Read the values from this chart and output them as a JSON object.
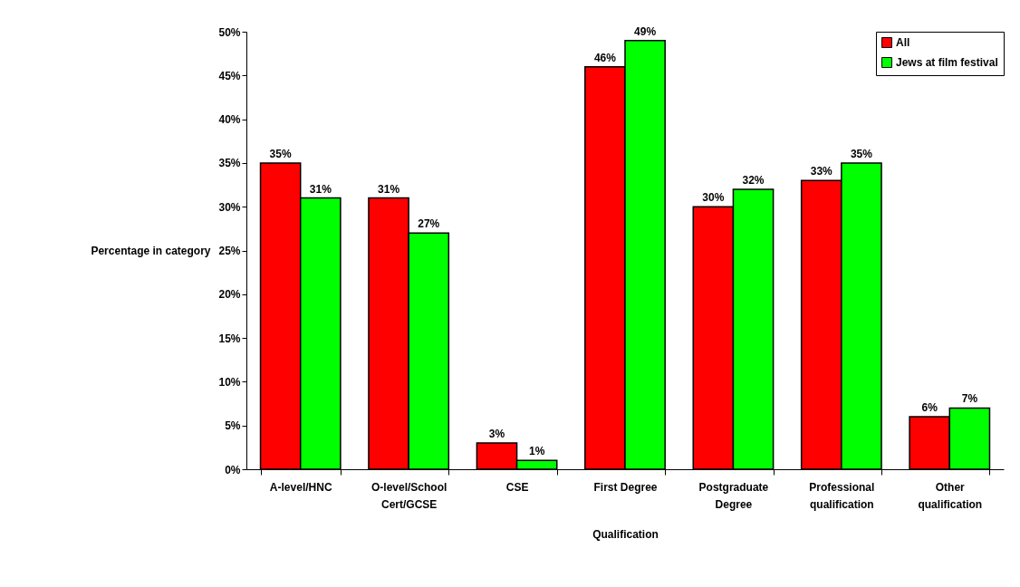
{
  "chart_data": {
    "type": "bar",
    "xlabel": "Qualification",
    "ylabel": "Percentage in category",
    "categories": [
      "A-level/HNC",
      "O-level/School Cert/GCSE",
      "CSE",
      "First Degree",
      "Postgraduate Degree",
      "Professional qualification",
      "Other qualification"
    ],
    "series": [
      {
        "name": "All",
        "color": "#ff0000",
        "values": [
          35,
          31,
          3,
          46,
          30,
          33,
          6
        ],
        "value_labels": [
          "35%",
          "31%",
          "3%",
          "46%",
          "30%",
          "33%",
          "6%"
        ]
      },
      {
        "name": "Jews at film festival",
        "color": "#00ff00",
        "values": [
          31,
          27,
          1,
          49,
          32,
          35,
          7
        ],
        "value_labels": [
          "31%",
          "27%",
          "1%",
          "49%",
          "32%",
          "35%",
          "7%"
        ]
      }
    ],
    "ylim": [
      0,
      50
    ],
    "yticks": [
      {
        "value": 0,
        "label": "0%"
      },
      {
        "value": 5,
        "label": "5%"
      },
      {
        "value": 10,
        "label": "10%"
      },
      {
        "value": 15,
        "label": "15%"
      },
      {
        "value": 20,
        "label": "20%"
      },
      {
        "value": 25,
        "label": "25%"
      },
      {
        "value": 30,
        "label": "30%"
      },
      {
        "value": 35,
        "label": "35%"
      },
      {
        "value": 40,
        "label": "40%"
      },
      {
        "value": 45,
        "label": "45%"
      },
      {
        "value": 50,
        "label": "50%"
      }
    ],
    "grid": false,
    "legend": "top right"
  }
}
